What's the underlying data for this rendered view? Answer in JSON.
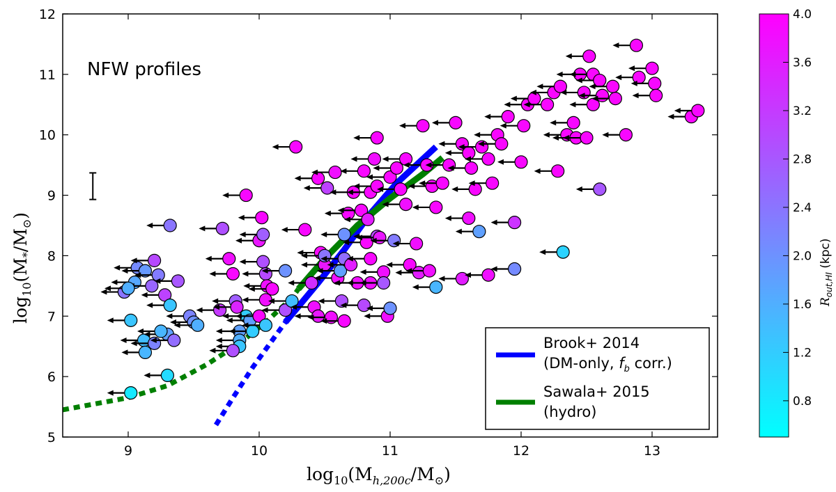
{
  "chart_data": {
    "type": "scatter",
    "title": "",
    "annotation": "NFW profiles",
    "xlabel_main": "log",
    "xlabel_sub": "10",
    "xlabel_rest": "(M",
    "xlabel_rest_sub": "h,200c",
    "xlabel_tail": "/M",
    "xlabel_sun": "⊙",
    "xlabel_close": ")",
    "ylabel_main": "log",
    "ylabel_sub": "10",
    "ylabel_rest": "(M",
    "ylabel_rest_sub": "*",
    "ylabel_tail": "/M",
    "ylabel_sun": "⊙",
    "ylabel_close": ")",
    "xlim": [
      8.5,
      13.5
    ],
    "ylim": [
      5,
      12
    ],
    "xticks": [
      "9",
      "10",
      "11",
      "12",
      "13"
    ],
    "yticks": [
      "5",
      "6",
      "7",
      "8",
      "9",
      "10",
      "11",
      "12"
    ],
    "colorbar": {
      "label": "R",
      "label_sub": "out,HI",
      "label_unit": " (kpc)",
      "range": [
        0.5,
        4.0
      ],
      "ticks": [
        "0.8",
        "1.2",
        "1.6",
        "2.0",
        "2.4",
        "2.8",
        "3.2",
        "3.6",
        "4.0"
      ],
      "color_low": "#00ffff",
      "color_high": "#ff00ff"
    },
    "error_bar": {
      "x": 8.73,
      "y_low": 8.93,
      "y_high": 9.37
    },
    "series": [
      {
        "name": "Brook+ 2014",
        "name_line2": "(DM-only, ",
        "name_line2_math": "f",
        "name_line2_sub": "b",
        "name_line2_end": " corr.)",
        "color": "#0000ff",
        "dotted": {
          "x": [
            9.67,
            9.8,
            9.95,
            10.1,
            10.2
          ],
          "y": [
            5.2,
            5.65,
            6.15,
            6.6,
            6.9
          ]
        },
        "solid": {
          "x": [
            10.2,
            10.45,
            10.65,
            10.85,
            11.05,
            11.25,
            11.35
          ],
          "y": [
            6.9,
            7.55,
            8.1,
            8.7,
            9.2,
            9.6,
            9.8
          ]
        }
      },
      {
        "name": "Sawala+ 2015",
        "name_line2": "(hydro)",
        "color": "#007f00",
        "dotted": {
          "x": [
            8.5,
            8.75,
            9.0,
            9.3,
            9.6,
            9.85,
            10.05,
            10.25,
            10.3
          ],
          "y": [
            5.45,
            5.55,
            5.65,
            5.85,
            6.2,
            6.55,
            6.9,
            7.3,
            7.45
          ]
        },
        "solid": {
          "x": [
            10.3,
            10.5,
            10.75,
            11.0,
            11.25,
            11.4
          ],
          "y": [
            7.45,
            7.95,
            8.5,
            8.95,
            9.35,
            9.62
          ]
        }
      }
    ],
    "points": [
      [
        9.07,
        7.8,
        2.1
      ],
      [
        9.13,
        7.75,
        1.9
      ],
      [
        9.05,
        7.56,
        1.7
      ],
      [
        8.97,
        7.4,
        2.4
      ],
      [
        9.2,
        7.92,
        3.0
      ],
      [
        9.23,
        7.68,
        2.3
      ],
      [
        9.18,
        7.5,
        2.6
      ],
      [
        9.28,
        7.35,
        3.1
      ],
      [
        9.38,
        7.58,
        2.8
      ],
      [
        9.0,
        7.46,
        1.6
      ],
      [
        9.02,
        6.93,
        1.3
      ],
      [
        9.12,
        6.6,
        1.4
      ],
      [
        9.2,
        6.55,
        2.2
      ],
      [
        9.3,
        6.7,
        1.8
      ],
      [
        9.25,
        6.75,
        1.5
      ],
      [
        9.35,
        6.6,
        2.5
      ],
      [
        9.13,
        6.4,
        1.5
      ],
      [
        9.32,
        7.18,
        1.3
      ],
      [
        9.47,
        7.0,
        2.2
      ],
      [
        9.5,
        6.9,
        2.0
      ],
      [
        9.53,
        6.85,
        1.6
      ],
      [
        9.32,
        8.5,
        2.4
      ],
      [
        9.3,
        6.02,
        1.0
      ],
      [
        9.02,
        5.73,
        0.8
      ],
      [
        9.7,
        7.1,
        3.2
      ],
      [
        9.72,
        8.45,
        2.9
      ],
      [
        9.77,
        7.95,
        3.8
      ],
      [
        9.8,
        7.7,
        3.9
      ],
      [
        9.82,
        7.25,
        2.7
      ],
      [
        9.83,
        7.15,
        3.5
      ],
      [
        9.85,
        6.75,
        1.8
      ],
      [
        9.85,
        6.6,
        1.6
      ],
      [
        9.85,
        6.5,
        1.3
      ],
      [
        9.8,
        6.43,
        2.9
      ],
      [
        9.9,
        7.0,
        1.2
      ],
      [
        9.9,
        9.0,
        3.9
      ],
      [
        9.93,
        6.93,
        1.8
      ],
      [
        9.95,
        6.75,
        1.2
      ],
      [
        10.0,
        7.0,
        3.9
      ],
      [
        10.0,
        8.25,
        3.7
      ],
      [
        10.02,
        8.63,
        3.9
      ],
      [
        10.03,
        8.35,
        2.7
      ],
      [
        10.03,
        7.9,
        2.9
      ],
      [
        10.05,
        7.7,
        3.0
      ],
      [
        10.06,
        7.5,
        3.8
      ],
      [
        10.1,
        7.45,
        3.9
      ],
      [
        10.05,
        7.27,
        3.8
      ],
      [
        10.05,
        6.85,
        1.3
      ],
      [
        10.2,
        7.75,
        2.0
      ],
      [
        10.2,
        7.1,
        2.9
      ],
      [
        10.25,
        7.25,
        1.4
      ],
      [
        10.28,
        9.8,
        3.9
      ],
      [
        10.35,
        8.43,
        3.9
      ],
      [
        10.4,
        7.55,
        3.4
      ],
      [
        10.42,
        7.15,
        3.8
      ],
      [
        10.45,
        7.0,
        3.7
      ],
      [
        10.45,
        9.28,
        3.9
      ],
      [
        10.47,
        8.05,
        3.9
      ],
      [
        10.5,
        7.85,
        3.7
      ],
      [
        10.5,
        8.0,
        2.4
      ],
      [
        10.52,
        9.12,
        3.1
      ],
      [
        10.55,
        6.98,
        3.8
      ],
      [
        10.58,
        9.38,
        3.8
      ],
      [
        10.6,
        7.63,
        3.8
      ],
      [
        10.62,
        7.75,
        1.8
      ],
      [
        10.63,
        7.25,
        2.9
      ],
      [
        10.65,
        8.35,
        2.0
      ],
      [
        10.65,
        7.95,
        2.5
      ],
      [
        10.65,
        6.92,
        3.9
      ],
      [
        10.68,
        8.7,
        3.9
      ],
      [
        10.7,
        7.85,
        3.6
      ],
      [
        10.72,
        9.05,
        3.9
      ],
      [
        10.75,
        7.55,
        3.8
      ],
      [
        10.78,
        8.75,
        3.9
      ],
      [
        10.8,
        7.18,
        3.0
      ],
      [
        10.8,
        9.4,
        3.9
      ],
      [
        10.82,
        8.22,
        3.9
      ],
      [
        10.83,
        8.6,
        3.6
      ],
      [
        10.85,
        7.95,
        3.9
      ],
      [
        10.85,
        7.55,
        3.8
      ],
      [
        10.85,
        9.05,
        3.9
      ],
      [
        10.88,
        9.6,
        3.8
      ],
      [
        10.9,
        9.15,
        3.9
      ],
      [
        10.9,
        8.32,
        3.0
      ],
      [
        10.92,
        8.3,
        3.7
      ],
      [
        10.95,
        7.73,
        3.8
      ],
      [
        10.95,
        7.55,
        2.8
      ],
      [
        10.98,
        7.0,
        3.8
      ],
      [
        11.0,
        7.13,
        2.0
      ],
      [
        11.0,
        9.3,
        3.9
      ],
      [
        11.03,
        8.25,
        2.3
      ],
      [
        11.05,
        9.45,
        3.9
      ],
      [
        11.08,
        9.1,
        3.9
      ],
      [
        11.12,
        9.6,
        3.9
      ],
      [
        11.12,
        8.85,
        3.8
      ],
      [
        11.15,
        7.85,
        3.9
      ],
      [
        11.2,
        8.2,
        3.8
      ],
      [
        11.22,
        7.72,
        3.6
      ],
      [
        11.25,
        10.15,
        3.9
      ],
      [
        11.28,
        9.5,
        3.9
      ],
      [
        11.3,
        7.75,
        3.8
      ],
      [
        11.32,
        9.15,
        3.9
      ],
      [
        11.35,
        8.8,
        3.9
      ],
      [
        11.35,
        7.48,
        1.5
      ],
      [
        11.4,
        9.2,
        3.9
      ],
      [
        11.45,
        9.5,
        3.9
      ],
      [
        11.5,
        10.2,
        3.9
      ],
      [
        11.55,
        7.62,
        3.6
      ],
      [
        11.55,
        9.85,
        3.9
      ],
      [
        11.6,
        8.62,
        3.8
      ],
      [
        11.6,
        9.7,
        3.9
      ],
      [
        11.62,
        9.45,
        3.9
      ],
      [
        11.65,
        9.1,
        3.9
      ],
      [
        11.68,
        8.4,
        1.8
      ],
      [
        11.7,
        9.8,
        3.9
      ],
      [
        11.75,
        9.6,
        3.9
      ],
      [
        11.75,
        7.68,
        3.8
      ],
      [
        11.78,
        9.2,
        3.9
      ],
      [
        11.82,
        10.0,
        3.9
      ],
      [
        11.85,
        9.85,
        3.9
      ],
      [
        11.9,
        10.3,
        3.9
      ],
      [
        11.95,
        8.55,
        3.3
      ],
      [
        11.95,
        7.78,
        2.1
      ],
      [
        12.0,
        9.55,
        3.9
      ],
      [
        12.02,
        10.15,
        3.9
      ],
      [
        12.05,
        10.5,
        3.9
      ],
      [
        12.1,
        10.6,
        3.9
      ],
      [
        12.2,
        10.5,
        3.9
      ],
      [
        12.25,
        10.7,
        3.9
      ],
      [
        12.28,
        9.4,
        3.9
      ],
      [
        12.3,
        10.8,
        3.9
      ],
      [
        12.32,
        8.06,
        1.1
      ],
      [
        12.35,
        10.0,
        3.9
      ],
      [
        12.4,
        10.2,
        3.9
      ],
      [
        12.42,
        9.95,
        3.9
      ],
      [
        12.45,
        11.0,
        3.9
      ],
      [
        12.48,
        10.7,
        3.9
      ],
      [
        12.5,
        9.95,
        3.9
      ],
      [
        12.52,
        11.3,
        3.9
      ],
      [
        12.55,
        11.0,
        3.9
      ],
      [
        12.55,
        10.5,
        3.9
      ],
      [
        12.6,
        10.9,
        3.9
      ],
      [
        12.6,
        9.1,
        2.8
      ],
      [
        12.62,
        10.65,
        3.9
      ],
      [
        12.7,
        10.8,
        3.9
      ],
      [
        12.72,
        10.6,
        3.9
      ],
      [
        12.8,
        10.0,
        3.9
      ],
      [
        12.88,
        11.48,
        3.9
      ],
      [
        12.9,
        10.95,
        3.9
      ],
      [
        13.0,
        11.1,
        3.9
      ],
      [
        13.02,
        10.85,
        3.9
      ],
      [
        13.03,
        10.65,
        3.9
      ],
      [
        13.3,
        10.3,
        3.9
      ],
      [
        13.35,
        10.4,
        3.9
      ],
      [
        10.9,
        9.95,
        3.9
      ]
    ]
  }
}
